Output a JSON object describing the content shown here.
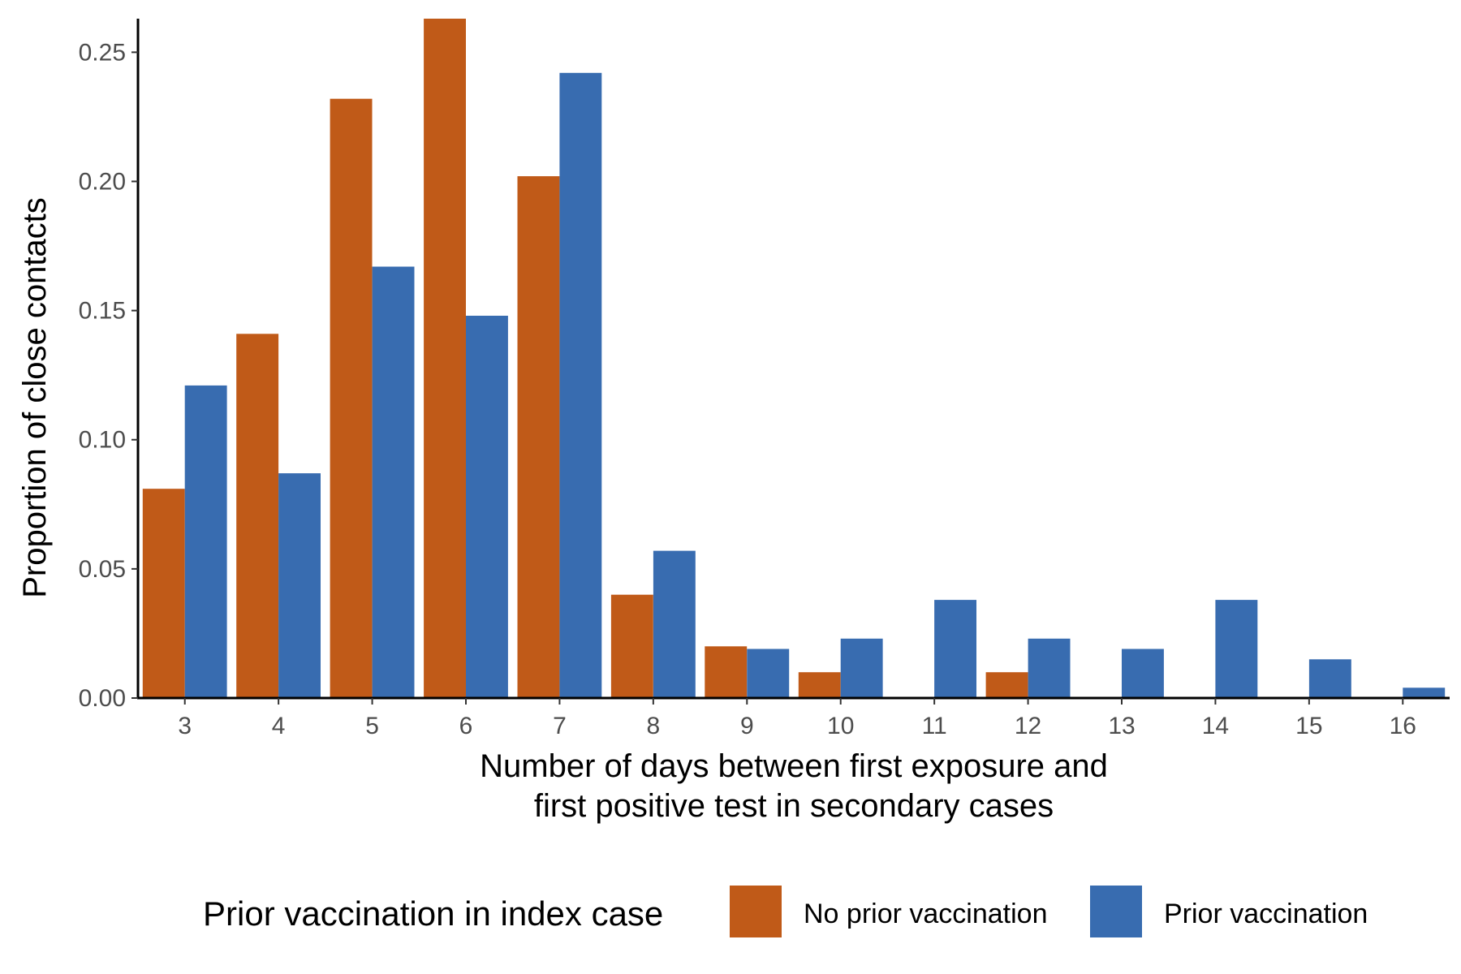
{
  "chart_data": {
    "type": "bar",
    "title": "",
    "xlabel_lines": [
      "Number of days between first exposure and",
      "first positive test in secondary cases"
    ],
    "ylabel": "Proportion of close contacts",
    "categories": [
      "3",
      "4",
      "5",
      "6",
      "7",
      "8",
      "9",
      "10",
      "11",
      "12",
      "13",
      "14",
      "15",
      "16"
    ],
    "series": [
      {
        "name": "No prior vaccination",
        "color": "#C05A18",
        "values": [
          0.081,
          0.141,
          0.232,
          0.263,
          0.202,
          0.04,
          0.02,
          0.01,
          0,
          0.01,
          0,
          0,
          0,
          0
        ]
      },
      {
        "name": "Prior vaccination",
        "color": "#386CB0",
        "values": [
          0.121,
          0.087,
          0.167,
          0.148,
          0.242,
          0.057,
          0.019,
          0.023,
          0.038,
          0.023,
          0.019,
          0.038,
          0.015,
          0.004
        ]
      }
    ],
    "ylim": [
      0,
      0.263
    ],
    "yticks": [
      "0.00",
      "0.05",
      "0.10",
      "0.15",
      "0.20",
      "0.25"
    ],
    "grid": false,
    "legend_position": "bottom",
    "legend_title": "Prior vaccination in index case"
  }
}
